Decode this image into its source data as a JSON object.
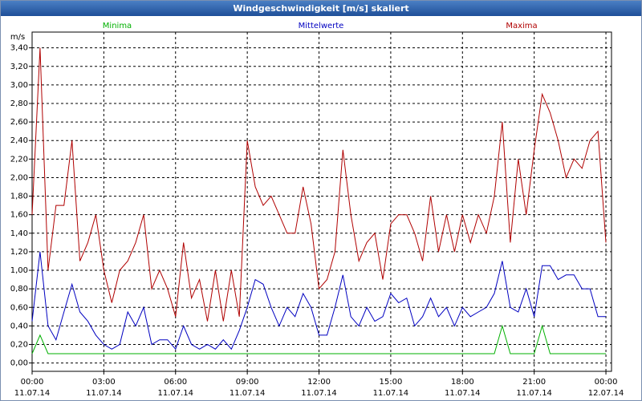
{
  "chart_data": {
    "type": "line",
    "title": "Windgeschwindigkeit [m/s] skaliert",
    "y_label": "m/s",
    "x": [
      0,
      20,
      40,
      60,
      80,
      100,
      120,
      140,
      160,
      180,
      200,
      220,
      240,
      260,
      280,
      300,
      320,
      340,
      360,
      380,
      400,
      420,
      440,
      460,
      480,
      500,
      520,
      540,
      560,
      580,
      600,
      620,
      640,
      660,
      680,
      700,
      720,
      740,
      760,
      780,
      800,
      820,
      840,
      860,
      880,
      900,
      920,
      940,
      960,
      980,
      1000,
      1020,
      1040,
      1060,
      1080,
      1100,
      1120,
      1140,
      1160,
      1180,
      1200,
      1220,
      1240,
      1260,
      1280,
      1300,
      1320,
      1340,
      1360,
      1380,
      1400,
      1420,
      1440
    ],
    "series": [
      {
        "name": "Minima",
        "color": "#00b000",
        "values": [
          0.1,
          0.3,
          0.1,
          0.1,
          0.1,
          0.1,
          0.1,
          0.1,
          0.1,
          0.1,
          0.1,
          0.1,
          0.1,
          0.1,
          0.1,
          0.1,
          0.1,
          0.1,
          0.1,
          0.1,
          0.1,
          0.1,
          0.1,
          0.1,
          0.1,
          0.1,
          0.1,
          0.1,
          0.1,
          0.1,
          0.1,
          0.1,
          0.1,
          0.1,
          0.1,
          0.1,
          0.1,
          0.1,
          0.1,
          0.1,
          0.1,
          0.1,
          0.1,
          0.1,
          0.1,
          0.1,
          0.1,
          0.1,
          0.1,
          0.1,
          0.1,
          0.1,
          0.1,
          0.1,
          0.1,
          0.1,
          0.1,
          0.1,
          0.1,
          0.4,
          0.1,
          0.1,
          0.1,
          0.1,
          0.4,
          0.1,
          0.1,
          0.1,
          0.1,
          0.1,
          0.1,
          0.1,
          0.1
        ]
      },
      {
        "name": "Mittelwerte",
        "color": "#0000c0",
        "values": [
          0.45,
          1.2,
          0.4,
          0.25,
          0.55,
          0.85,
          0.55,
          0.45,
          0.3,
          0.2,
          0.15,
          0.2,
          0.55,
          0.4,
          0.6,
          0.2,
          0.25,
          0.25,
          0.15,
          0.4,
          0.2,
          0.15,
          0.2,
          0.15,
          0.25,
          0.15,
          0.35,
          0.6,
          0.9,
          0.85,
          0.6,
          0.4,
          0.6,
          0.5,
          0.75,
          0.6,
          0.3,
          0.3,
          0.6,
          0.95,
          0.5,
          0.4,
          0.6,
          0.45,
          0.5,
          0.75,
          0.65,
          0.7,
          0.4,
          0.5,
          0.7,
          0.5,
          0.6,
          0.4,
          0.6,
          0.5,
          0.55,
          0.6,
          0.75,
          1.1,
          0.6,
          0.55,
          0.8,
          0.5,
          1.05,
          1.05,
          0.9,
          0.95,
          0.95,
          0.8,
          0.8,
          0.5,
          0.5
        ]
      },
      {
        "name": "Maxima",
        "color": "#b00000",
        "values": [
          1.6,
          3.4,
          1.0,
          1.7,
          1.7,
          2.4,
          1.1,
          1.3,
          1.6,
          1.0,
          0.65,
          1.0,
          1.1,
          1.3,
          1.6,
          0.8,
          1.0,
          0.8,
          0.5,
          1.3,
          0.7,
          0.9,
          0.45,
          1.0,
          0.45,
          1.0,
          0.5,
          2.4,
          1.9,
          1.7,
          1.8,
          1.6,
          1.4,
          1.4,
          1.9,
          1.5,
          0.8,
          0.9,
          1.2,
          2.3,
          1.6,
          1.1,
          1.3,
          1.4,
          0.9,
          1.5,
          1.6,
          1.6,
          1.4,
          1.1,
          1.8,
          1.2,
          1.6,
          1.2,
          1.6,
          1.3,
          1.6,
          1.4,
          1.8,
          2.6,
          1.3,
          2.2,
          1.6,
          2.3,
          2.9,
          2.7,
          2.4,
          2.0,
          2.2,
          2.1,
          2.4,
          2.5,
          1.3
        ]
      }
    ],
    "xlim": [
      0,
      1454
    ],
    "ylim": [
      -0.09,
      3.57
    ],
    "xticks": [
      {
        "value": 0,
        "label": "00:00"
      },
      {
        "value": 180,
        "label": "03:00"
      },
      {
        "value": 360,
        "label": "06:00"
      },
      {
        "value": 540,
        "label": "09:00"
      },
      {
        "value": 720,
        "label": "12:00"
      },
      {
        "value": 900,
        "label": "15:00"
      },
      {
        "value": 1080,
        "label": "18:00"
      },
      {
        "value": 1260,
        "label": "21:00"
      },
      {
        "value": 1440,
        "label": "00:00"
      }
    ],
    "xtick_dates": [
      "11.07.14",
      "11.07.14",
      "11.07.14",
      "11.07.14",
      "11.07.14",
      "11.07.14",
      "11.07.14",
      "11.07.14",
      "12.07.14"
    ],
    "yticks": [
      {
        "value": 0,
        "label": "0,00"
      },
      {
        "value": 0.2,
        "label": "0,20"
      },
      {
        "value": 0.4,
        "label": "0,40"
      },
      {
        "value": 0.6,
        "label": "0,60"
      },
      {
        "value": 0.8,
        "label": "0,80"
      },
      {
        "value": 1,
        "label": "1,00"
      },
      {
        "value": 1.2,
        "label": "1,20"
      },
      {
        "value": 1.4,
        "label": "1,40"
      },
      {
        "value": 1.6,
        "label": "1,60"
      },
      {
        "value": 1.8,
        "label": "1,80"
      },
      {
        "value": 2,
        "label": "2,00"
      },
      {
        "value": 2.2,
        "label": "2,20"
      },
      {
        "value": 2.4,
        "label": "2,40"
      },
      {
        "value": 2.6,
        "label": "2,60"
      },
      {
        "value": 2.8,
        "label": "2,80"
      },
      {
        "value": 3,
        "label": "3,00"
      },
      {
        "value": 3.2,
        "label": "3,20"
      },
      {
        "value": 3.4,
        "label": "3,40"
      }
    ],
    "grid": true
  }
}
